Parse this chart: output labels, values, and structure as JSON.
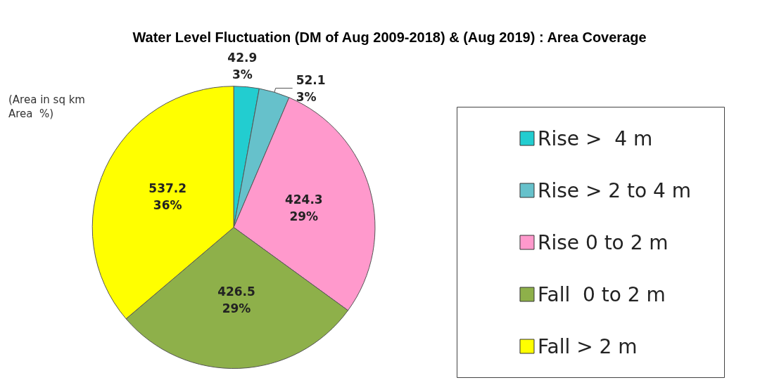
{
  "chart_data": {
    "type": "pie",
    "title": "Water Level Fluctuation (DM of Aug 2009-2018) & (Aug 2019) : Area Coverage",
    "categories": [
      "Rise >  4 m",
      "Rise > 2 to 4 m",
      "Rise 0 to 2 m",
      "Fall  0 to 2 m",
      "Fall > 2 m"
    ],
    "values": [
      42.9,
      52.1,
      424.3,
      426.5,
      537.2
    ],
    "value_labels": [
      "42.9\n3%",
      "52.1\n3%",
      "424.3\n29%",
      "426.5\n29%",
      "537.2\n36%"
    ],
    "colors": [
      "#22cdd0",
      "#66c1cb",
      "#ff99cc",
      "#8eb04a",
      "#ffff00"
    ],
    "annotations": [
      "(Area in sq km\nArea  %)"
    ],
    "legend": "right"
  }
}
